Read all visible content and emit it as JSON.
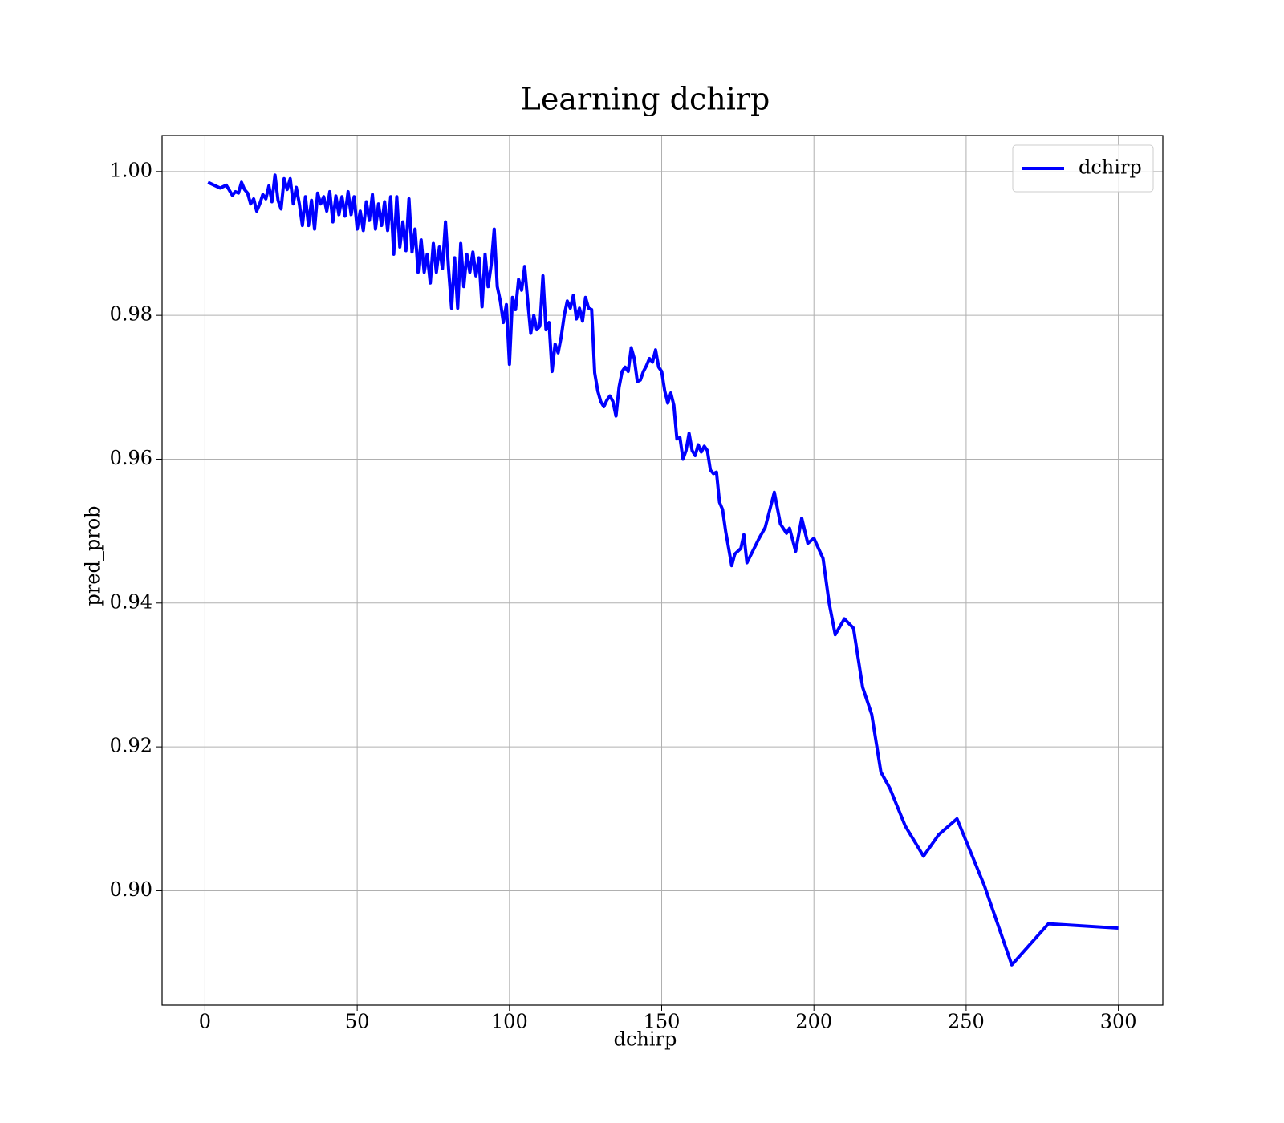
{
  "chart_data": {
    "type": "line",
    "title": "Learning dchirp",
    "xlabel": "dchirp",
    "ylabel": "pred_prob",
    "x": [
      1,
      5,
      7,
      8,
      9,
      10,
      11,
      12,
      13,
      14,
      15,
      16,
      17,
      18,
      19,
      20,
      21,
      22,
      23,
      24,
      25,
      26,
      27,
      28,
      29,
      30,
      31,
      32,
      33,
      34,
      35,
      36,
      37,
      38,
      39,
      40,
      41,
      42,
      43,
      44,
      45,
      46,
      47,
      48,
      49,
      50,
      51,
      52,
      53,
      54,
      55,
      56,
      57,
      58,
      59,
      60,
      61,
      62,
      63,
      64,
      65,
      66,
      67,
      68,
      69,
      70,
      71,
      72,
      73,
      74,
      75,
      76,
      77,
      78,
      79,
      80,
      81,
      82,
      83,
      84,
      85,
      86,
      87,
      88,
      89,
      90,
      91,
      92,
      93,
      94,
      95,
      96,
      97,
      98,
      99,
      100,
      101,
      102,
      103,
      104,
      105,
      106,
      107,
      108,
      109,
      110,
      111,
      112,
      113,
      114,
      115,
      116,
      117,
      118,
      119,
      120,
      121,
      122,
      123,
      124,
      125,
      126,
      127,
      128,
      129,
      130,
      131,
      132,
      133,
      134,
      135,
      136,
      137,
      138,
      139,
      140,
      141,
      142,
      143,
      144,
      145,
      146,
      147,
      148,
      149,
      150,
      151,
      152,
      153,
      154,
      155,
      156,
      157,
      158,
      159,
      160,
      161,
      162,
      163,
      164,
      165,
      166,
      167,
      168,
      169,
      170,
      171,
      173,
      174,
      176,
      177,
      178,
      182,
      184,
      187,
      189,
      191,
      192,
      194,
      196,
      198,
      200,
      203,
      205,
      207,
      210,
      213,
      216,
      219,
      222,
      225,
      230,
      236,
      241,
      247,
      256,
      265,
      277,
      300
    ],
    "series": [
      {
        "name": "dchirp",
        "color": "#0000ff",
        "values": [
          0.9985,
          0.9977,
          0.9981,
          0.9974,
          0.9967,
          0.9972,
          0.997,
          0.9985,
          0.9975,
          0.997,
          0.9955,
          0.9962,
          0.9945,
          0.9955,
          0.9968,
          0.9962,
          0.998,
          0.9958,
          0.9995,
          0.996,
          0.9948,
          0.999,
          0.9975,
          0.999,
          0.9955,
          0.9978,
          0.9955,
          0.9925,
          0.9965,
          0.9925,
          0.996,
          0.992,
          0.997,
          0.9955,
          0.9965,
          0.9945,
          0.9972,
          0.993,
          0.9966,
          0.994,
          0.9965,
          0.9938,
          0.9972,
          0.994,
          0.9965,
          0.992,
          0.9945,
          0.9918,
          0.9958,
          0.9932,
          0.9968,
          0.992,
          0.9955,
          0.9925,
          0.9958,
          0.9918,
          0.9965,
          0.9885,
          0.9965,
          0.9895,
          0.993,
          0.989,
          0.9962,
          0.9888,
          0.992,
          0.986,
          0.9905,
          0.986,
          0.9885,
          0.9845,
          0.99,
          0.986,
          0.9895,
          0.9865,
          0.993,
          0.9865,
          0.981,
          0.988,
          0.981,
          0.99,
          0.984,
          0.9885,
          0.986,
          0.9888,
          0.9855,
          0.988,
          0.9812,
          0.9885,
          0.984,
          0.987,
          0.992,
          0.984,
          0.982,
          0.979,
          0.9815,
          0.9732,
          0.9825,
          0.9808,
          0.985,
          0.9835,
          0.9868,
          0.982,
          0.9775,
          0.98,
          0.978,
          0.9785,
          0.9855,
          0.978,
          0.979,
          0.9722,
          0.976,
          0.9748,
          0.977,
          0.98,
          0.982,
          0.981,
          0.9828,
          0.9795,
          0.981,
          0.9792,
          0.9825,
          0.981,
          0.9808,
          0.972,
          0.9695,
          0.968,
          0.9673,
          0.9682,
          0.9688,
          0.968,
          0.966,
          0.97,
          0.9722,
          0.9728,
          0.9722,
          0.9755,
          0.974,
          0.9708,
          0.971,
          0.9722,
          0.973,
          0.974,
          0.9735,
          0.9752,
          0.9728,
          0.9722,
          0.9695,
          0.9678,
          0.9692,
          0.9675,
          0.9628,
          0.963,
          0.96,
          0.9612,
          0.9636,
          0.9612,
          0.9605,
          0.962,
          0.961,
          0.9618,
          0.9612,
          0.9585,
          0.958,
          0.9582,
          0.954,
          0.953,
          0.95,
          0.9452,
          0.9468,
          0.9476,
          0.9495,
          0.9456,
          0.949,
          0.9505,
          0.9554,
          0.951,
          0.9497,
          0.9504,
          0.9472,
          0.9518,
          0.9483,
          0.949,
          0.9462,
          0.94,
          0.9356,
          0.9378,
          0.9365,
          0.9283,
          0.9245,
          0.9165,
          0.9142,
          0.909,
          0.9048,
          0.9078,
          0.91,
          0.9007,
          0.8897,
          0.8954,
          0.8948
        ]
      }
    ],
    "xlim": [
      -14.08,
      314.6
    ],
    "ylim": [
      0.8841,
      1.005
    ],
    "xticks": [
      0,
      50,
      100,
      150,
      200,
      250,
      300
    ],
    "yticks": [
      {
        "value": 0.9,
        "label": "0.90"
      },
      0.92,
      0.94,
      0.96,
      0.98,
      {
        "value": 1.0,
        "label": "1.00"
      }
    ],
    "grid": true,
    "legend": "upper right"
  }
}
